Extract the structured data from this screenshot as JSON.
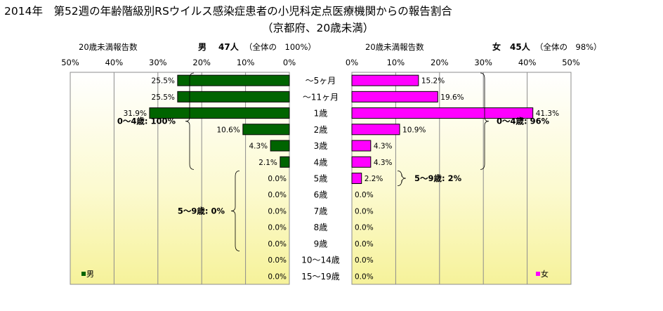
{
  "title": "2014年　第52週の年齢階級別RSウイルス感染症患者の小児科定点医療機関からの報告割合",
  "subtitle": "（京都府、20歳未満）",
  "chart_data": {
    "type": "bar",
    "orientation": "horizontal",
    "layout": "population-pyramid",
    "categories": [
      "～5ヶ月",
      "～11ヶ月",
      "1歳",
      "2歳",
      "3歳",
      "4歳",
      "5歳",
      "6歳",
      "7歳",
      "8歳",
      "9歳",
      "10～14歳",
      "15～19歳"
    ],
    "xlim": [
      0,
      50
    ],
    "tick_labels": [
      "0%",
      "10%",
      "20%",
      "30%",
      "40%",
      "50%"
    ],
    "grid": true,
    "background": "yellow-gradient",
    "series": [
      {
        "name": "男",
        "side": "left",
        "color": "#006400",
        "axis_title": "20歳未満報告数",
        "header_sex": "男",
        "header_count": "47人",
        "header_share": "（全体の　100%）",
        "values": [
          25.5,
          25.5,
          31.9,
          10.6,
          4.3,
          2.1,
          0.0,
          0.0,
          0.0,
          0.0,
          0.0,
          0.0,
          0.0
        ],
        "value_labels": [
          "25.5%",
          "25.5%",
          "31.9%",
          "10.6%",
          "4.3%",
          "2.1%",
          "0.0%",
          "0.0%",
          "0.0%",
          "0.0%",
          "0.0%",
          "0.0%",
          "0.0%"
        ],
        "legend": "男",
        "groups": [
          {
            "label": "0～4歳: 100%",
            "from": 0,
            "to": 5
          },
          {
            "label": "5～9歳: 0%",
            "from": 6,
            "to": 10
          }
        ]
      },
      {
        "name": "女",
        "side": "right",
        "color": "#ff00ff",
        "axis_title": "20歳未満報告数",
        "header_sex": "女",
        "header_count": "45人",
        "header_share": "（全体の　98%）",
        "values": [
          15.2,
          19.6,
          41.3,
          10.9,
          4.3,
          4.3,
          2.2,
          0.0,
          0.0,
          0.0,
          0.0,
          0.0,
          0.0
        ],
        "value_labels": [
          "15.2%",
          "19.6%",
          "41.3%",
          "10.9%",
          "4.3%",
          "4.3%",
          "2.2%",
          "0.0%",
          "0.0%",
          "0.0%",
          "0.0%",
          "0.0%",
          "0.0%"
        ],
        "legend": "女",
        "groups": [
          {
            "label": "0～4歳: 96%",
            "from": 0,
            "to": 5
          },
          {
            "label": "5～9歳: 2%",
            "from": 6,
            "to": 6
          }
        ]
      }
    ]
  }
}
